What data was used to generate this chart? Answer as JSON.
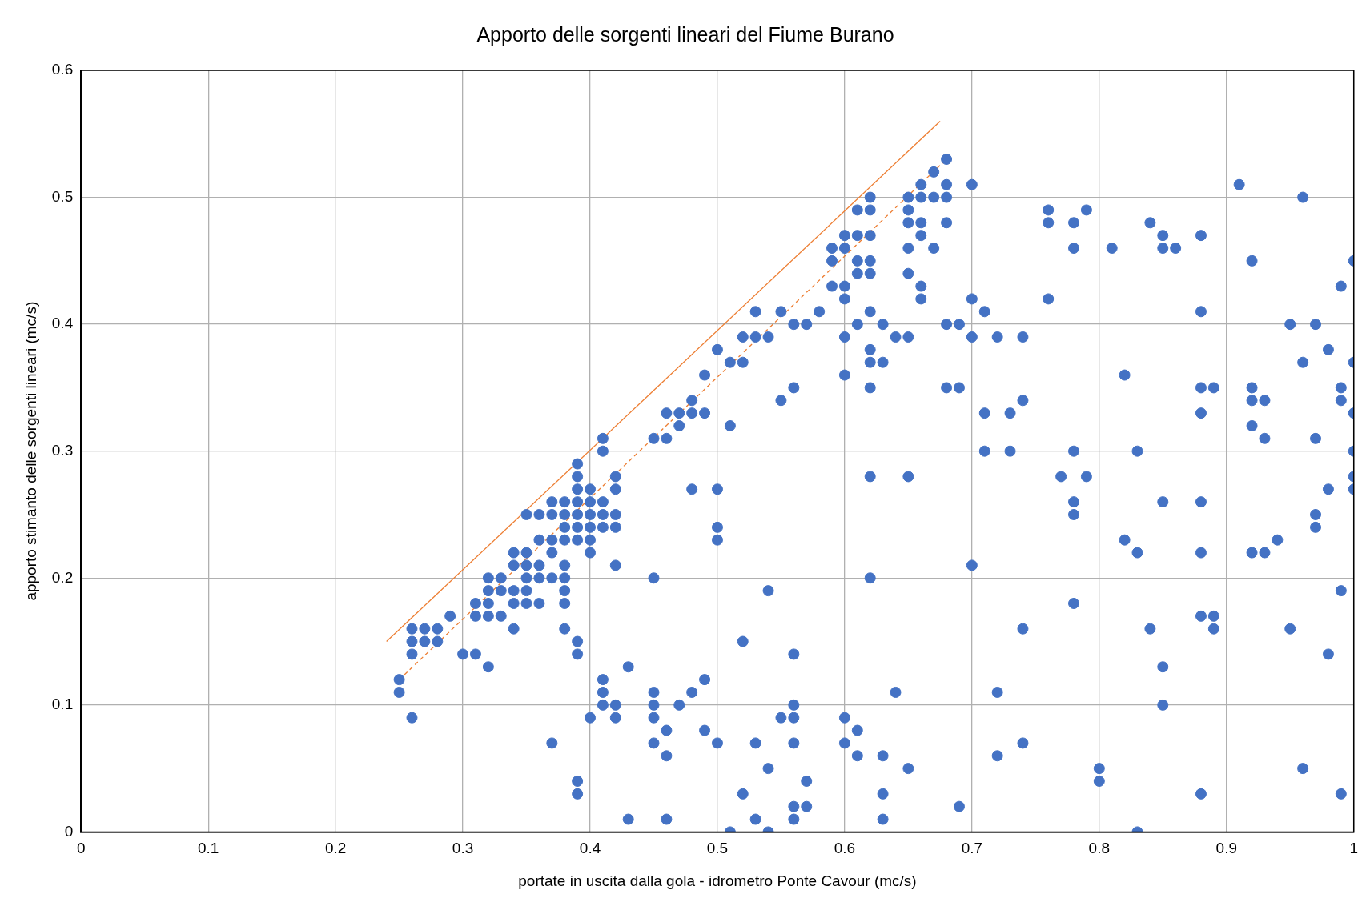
{
  "chart_data": {
    "type": "scatter",
    "title": "Apporto delle sorgenti lineari del Fiume Burano",
    "xlabel": "portate in uscita dalla gola - idrometro Ponte Cavour (mc/s)",
    "ylabel": "apporto stimanto delle sorgenti lineari (mc/s)",
    "xlim": [
      0,
      1
    ],
    "ylim": [
      0,
      0.6
    ],
    "xticks": [
      0,
      0.1,
      0.2,
      0.3,
      0.4,
      0.5,
      0.6,
      0.7,
      0.8,
      0.9,
      1
    ],
    "yticks": [
      0,
      0.1,
      0.2,
      0.3,
      0.4,
      0.5,
      0.6
    ],
    "grid": true,
    "legend": false,
    "series": [
      {
        "type": "scatter",
        "color": "#4472c4",
        "marker": "circle",
        "x": [
          0.25,
          0.25,
          0.26,
          0.26,
          0.26,
          0.26,
          0.27,
          0.27,
          0.28,
          0.28,
          0.29,
          0.3,
          0.31,
          0.31,
          0.31,
          0.32,
          0.32,
          0.32,
          0.32,
          0.32,
          0.33,
          0.33,
          0.33,
          0.34,
          0.34,
          0.34,
          0.34,
          0.34,
          0.35,
          0.35,
          0.35,
          0.35,
          0.35,
          0.35,
          0.36,
          0.36,
          0.36,
          0.36,
          0.36,
          0.37,
          0.37,
          0.37,
          0.37,
          0.37,
          0.37,
          0.38,
          0.38,
          0.38,
          0.38,
          0.38,
          0.38,
          0.38,
          0.38,
          0.38,
          0.39,
          0.39,
          0.39,
          0.39,
          0.39,
          0.39,
          0.39,
          0.39,
          0.39,
          0.39,
          0.39,
          0.4,
          0.4,
          0.4,
          0.4,
          0.4,
          0.4,
          0.4,
          0.41,
          0.41,
          0.41,
          0.41,
          0.41,
          0.41,
          0.41,
          0.41,
          0.42,
          0.42,
          0.42,
          0.42,
          0.42,
          0.42,
          0.42,
          0.43,
          0.43,
          0.45,
          0.45,
          0.45,
          0.45,
          0.45,
          0.45,
          0.46,
          0.46,
          0.46,
          0.46,
          0.46,
          0.47,
          0.47,
          0.47,
          0.48,
          0.48,
          0.48,
          0.48,
          0.49,
          0.49,
          0.49,
          0.49,
          0.5,
          0.5,
          0.5,
          0.5,
          0.5,
          0.51,
          0.51,
          0.51,
          0.52,
          0.52,
          0.52,
          0.52,
          0.53,
          0.53,
          0.53,
          0.53,
          0.54,
          0.54,
          0.54,
          0.54,
          0.55,
          0.55,
          0.55,
          0.56,
          0.56,
          0.56,
          0.56,
          0.56,
          0.56,
          0.56,
          0.56,
          0.57,
          0.57,
          0.57,
          0.58,
          0.59,
          0.59,
          0.59,
          0.6,
          0.6,
          0.6,
          0.6,
          0.6,
          0.6,
          0.6,
          0.6,
          0.61,
          0.61,
          0.61,
          0.61,
          0.61,
          0.61,
          0.61,
          0.62,
          0.62,
          0.62,
          0.62,
          0.62,
          0.62,
          0.62,
          0.62,
          0.62,
          0.62,
          0.62,
          0.63,
          0.63,
          0.63,
          0.63,
          0.63,
          0.64,
          0.64,
          0.65,
          0.65,
          0.65,
          0.65,
          0.65,
          0.65,
          0.65,
          0.65,
          0.66,
          0.66,
          0.66,
          0.66,
          0.66,
          0.66,
          0.67,
          0.67,
          0.67,
          0.68,
          0.68,
          0.68,
          0.68,
          0.68,
          0.68,
          0.69,
          0.69,
          0.69,
          0.7,
          0.7,
          0.7,
          0.7,
          0.71,
          0.71,
          0.71,
          0.72,
          0.72,
          0.72,
          0.73,
          0.73,
          0.74,
          0.74,
          0.74,
          0.74,
          0.76,
          0.76,
          0.76,
          0.77,
          0.78,
          0.78,
          0.78,
          0.78,
          0.78,
          0.78,
          0.79,
          0.79,
          0.8,
          0.8,
          0.81,
          0.82,
          0.82,
          0.83,
          0.83,
          0.83,
          0.84,
          0.84,
          0.85,
          0.85,
          0.85,
          0.85,
          0.85,
          0.86,
          0.88,
          0.88,
          0.88,
          0.88,
          0.88,
          0.88,
          0.88,
          0.88,
          0.89,
          0.89,
          0.89,
          0.91,
          0.92,
          0.92,
          0.92,
          0.92,
          0.92,
          0.93,
          0.93,
          0.93,
          0.94,
          0.95,
          0.95,
          0.96,
          0.96,
          0.96,
          0.97,
          0.97,
          0.97,
          0.97,
          0.98,
          0.98,
          0.98,
          0.99,
          0.99,
          0.99,
          0.99,
          0.99,
          1,
          1,
          1,
          1,
          1,
          1
        ],
        "values": [
          0.12,
          0.11,
          0.16,
          0.15,
          0.14,
          0.09,
          0.16,
          0.15,
          0.16,
          0.15,
          0.17,
          0.14,
          0.18,
          0.17,
          0.14,
          0.2,
          0.19,
          0.18,
          0.17,
          0.13,
          0.2,
          0.19,
          0.17,
          0.22,
          0.21,
          0.19,
          0.18,
          0.16,
          0.25,
          0.22,
          0.21,
          0.2,
          0.19,
          0.18,
          0.25,
          0.23,
          0.21,
          0.2,
          0.18,
          0.26,
          0.25,
          0.23,
          0.22,
          0.2,
          0.07,
          0.26,
          0.25,
          0.24,
          0.23,
          0.21,
          0.2,
          0.19,
          0.18,
          0.16,
          0.29,
          0.28,
          0.27,
          0.26,
          0.25,
          0.24,
          0.23,
          0.15,
          0.14,
          0.04,
          0.03,
          0.27,
          0.26,
          0.25,
          0.24,
          0.23,
          0.22,
          0.09,
          0.31,
          0.3,
          0.26,
          0.25,
          0.24,
          0.12,
          0.11,
          0.1,
          0.28,
          0.27,
          0.25,
          0.24,
          0.21,
          0.1,
          0.09,
          0.13,
          0.01,
          0.31,
          0.2,
          0.11,
          0.1,
          0.09,
          0.07,
          0.33,
          0.31,
          0.08,
          0.06,
          0.01,
          0.33,
          0.32,
          0.1,
          0.34,
          0.33,
          0.27,
          0.11,
          0.36,
          0.33,
          0.12,
          0.08,
          0.38,
          0.27,
          0.24,
          0.23,
          0.07,
          0.37,
          0.32,
          0,
          0.39,
          0.37,
          0.15,
          0.03,
          0.41,
          0.39,
          0.07,
          0.01,
          0.39,
          0.19,
          0.05,
          0,
          0.41,
          0.34,
          0.09,
          0.4,
          0.35,
          0.14,
          0.1,
          0.09,
          0.07,
          0.02,
          0.01,
          0.4,
          0.04,
          0.02,
          0.41,
          0.46,
          0.45,
          0.43,
          0.47,
          0.46,
          0.43,
          0.42,
          0.39,
          0.36,
          0.09,
          0.07,
          0.49,
          0.47,
          0.45,
          0.44,
          0.4,
          0.08,
          0.06,
          0.5,
          0.49,
          0.47,
          0.45,
          0.44,
          0.41,
          0.38,
          0.37,
          0.35,
          0.28,
          0.2,
          0.4,
          0.37,
          0.06,
          0.03,
          0.01,
          0.39,
          0.11,
          0.5,
          0.49,
          0.48,
          0.46,
          0.44,
          0.39,
          0.28,
          0.05,
          0.51,
          0.5,
          0.48,
          0.47,
          0.43,
          0.42,
          0.52,
          0.5,
          0.46,
          0.53,
          0.51,
          0.5,
          0.48,
          0.4,
          0.35,
          0.4,
          0.35,
          0.02,
          0.51,
          0.42,
          0.39,
          0.21,
          0.41,
          0.33,
          0.3,
          0.39,
          0.11,
          0.06,
          0.33,
          0.3,
          0.39,
          0.34,
          0.16,
          0.07,
          0.49,
          0.48,
          0.42,
          0.28,
          0.48,
          0.46,
          0.3,
          0.26,
          0.25,
          0.18,
          0.49,
          0.28,
          0.05,
          0.04,
          0.46,
          0.36,
          0.23,
          0.3,
          0.22,
          0,
          0.48,
          0.16,
          0.47,
          0.46,
          0.26,
          0.13,
          0.1,
          0.46,
          0.47,
          0.41,
          0.35,
          0.33,
          0.26,
          0.22,
          0.17,
          0.03,
          0.35,
          0.17,
          0.16,
          0.51,
          0.45,
          0.35,
          0.34,
          0.32,
          0.22,
          0.34,
          0.31,
          0.22,
          0.23,
          0.4,
          0.16,
          0.5,
          0.37,
          0.05,
          0.4,
          0.31,
          0.25,
          0.24,
          0.38,
          0.27,
          0.14,
          0.43,
          0.35,
          0.34,
          0.19,
          0.03,
          0.45,
          0.37,
          0.33,
          0.3,
          0.28,
          0.27
        ]
      },
      {
        "type": "line",
        "color": "#ed7d31",
        "marker": "none",
        "line_style": "solid",
        "x": [
          0.24,
          0.675
        ],
        "values": [
          0.15,
          0.56
        ]
      },
      {
        "type": "line",
        "color": "#ed7d31",
        "marker": "none",
        "line_style": "dashed",
        "x": [
          0.25,
          0.68
        ],
        "values": [
          0.12,
          0.53
        ]
      }
    ]
  }
}
